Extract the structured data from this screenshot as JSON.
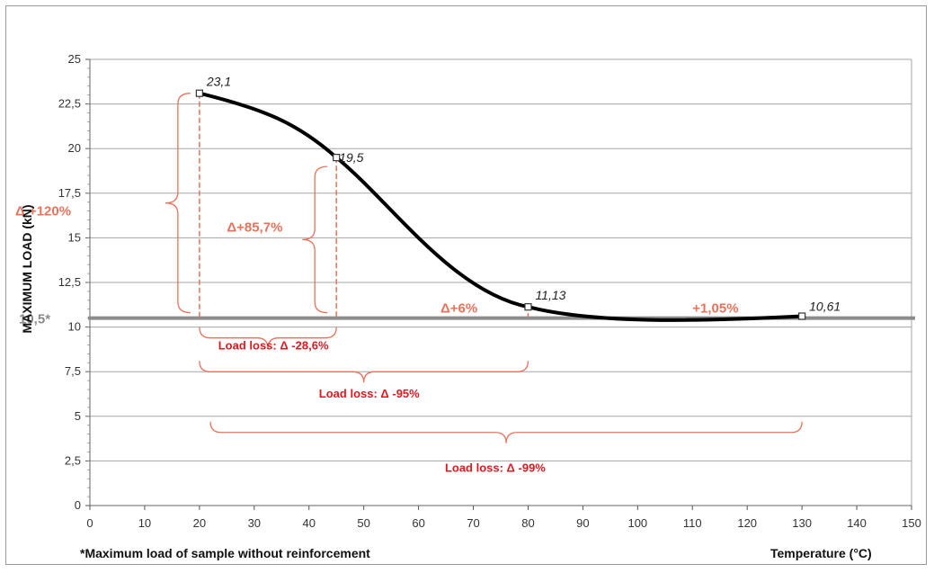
{
  "chart_data": {
    "type": "line",
    "title": "",
    "xlabel": "Temperature (°C)",
    "ylabel": "MAXIMUM  LOAD (kN)",
    "xlim": [
      0,
      150
    ],
    "ylim": [
      0,
      25
    ],
    "xticks": [
      "0",
      "10",
      "20",
      "30",
      "40",
      "50",
      "60",
      "70",
      "80",
      "90",
      "100",
      "110",
      "120",
      "130",
      "140",
      "150"
    ],
    "yticks": [
      "0",
      "2,5",
      "5",
      "7,5",
      "10",
      "12,5",
      "15",
      "17,5",
      "20",
      "22,5",
      "25"
    ],
    "grid": "horizontal",
    "series": [
      {
        "x": [
          20,
          45,
          80,
          130
        ],
        "y": [
          23.1,
          19.5,
          11.13,
          10.61
        ]
      }
    ],
    "point_labels": [
      "23,1",
      "19,5",
      "11,13",
      "10,61"
    ],
    "reference_line": {
      "value": 10.5,
      "label": "10,5*"
    },
    "annotations": {
      "delta_20": "Δ +120%",
      "delta_45": "Δ+85,7%",
      "delta_80": "Δ+6%",
      "delta_130": "+1,05%",
      "loss_1": "Load loss: Δ -28,6%",
      "loss_2": "Load loss: Δ -95%",
      "loss_3": "Load loss: Δ -99%"
    },
    "footnote": "*Maximum load of sample without reinforcement",
    "colors": {
      "curve": "#000000",
      "reference": "#8c8c8c",
      "annotation": "#e8735c",
      "loss_text": "#e0191f",
      "grid": "#a6a6a6"
    }
  }
}
